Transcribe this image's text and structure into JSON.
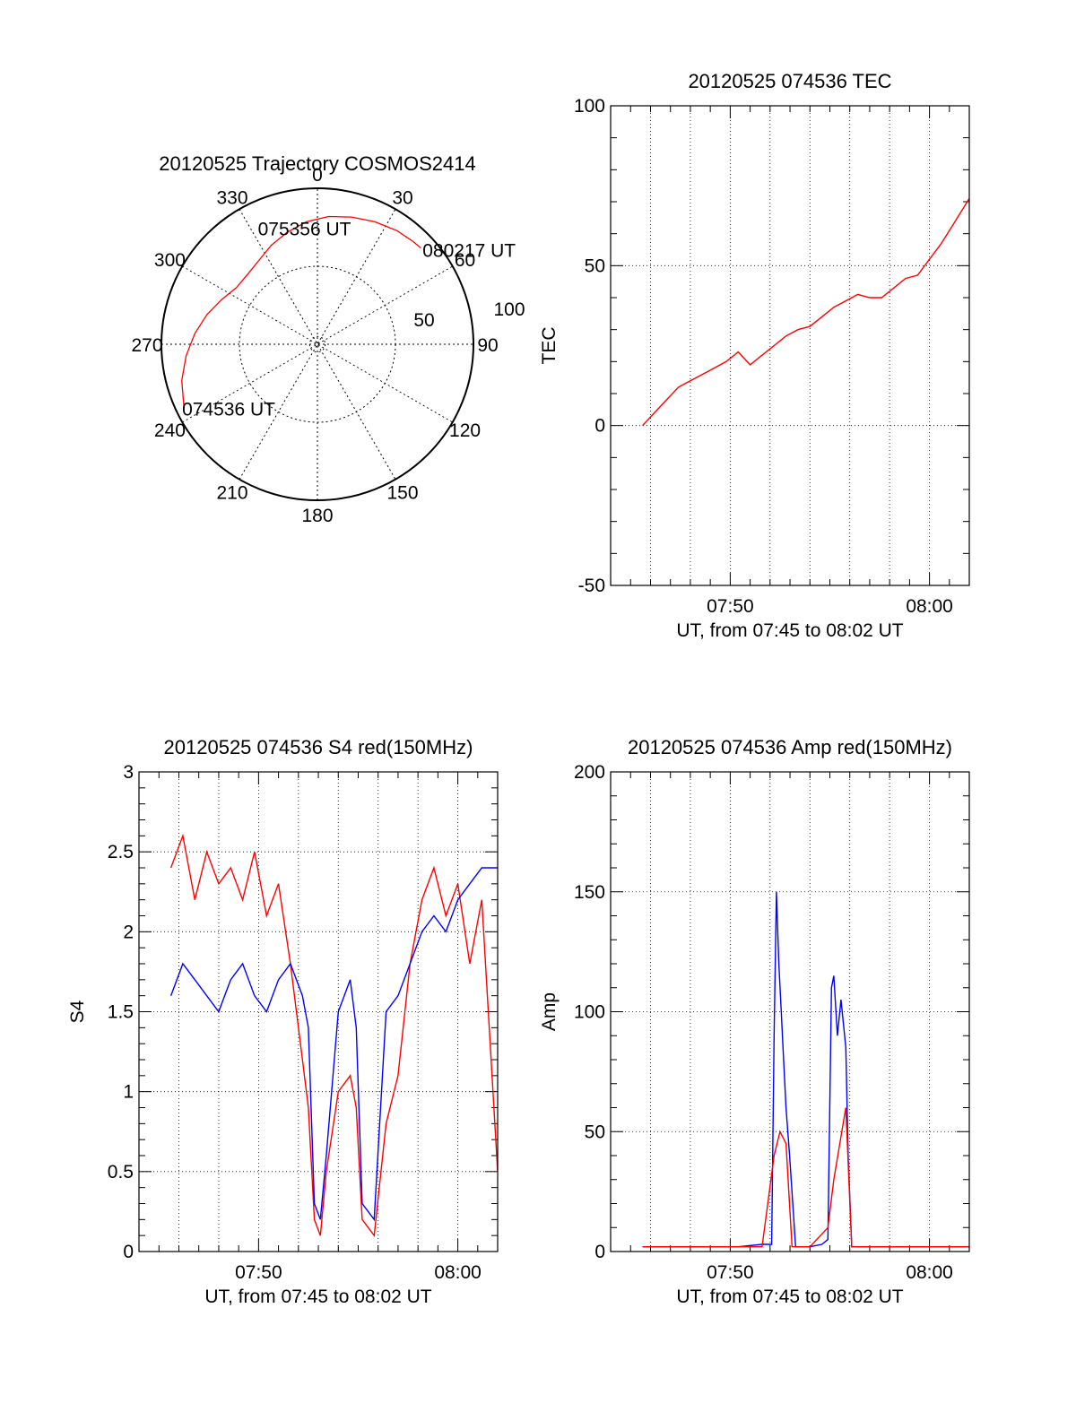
{
  "chart_data": [
    {
      "type": "polar",
      "title": "20120525 Trajectory COSMOS2414",
      "azimuth_labels": [
        "0",
        "30",
        "60",
        "90",
        "120",
        "150",
        "180",
        "210",
        "240",
        "270",
        "300",
        "330"
      ],
      "radial_labels": [
        "50",
        "100"
      ],
      "series": [
        {
          "color": "#ff0000",
          "points": [
            {
              "az": 245,
              "el": 5
            },
            {
              "az": 255,
              "el": 9
            },
            {
              "az": 265,
              "el": 14
            },
            {
              "az": 275,
              "el": 19
            },
            {
              "az": 285,
              "el": 24
            },
            {
              "az": 295,
              "el": 29
            },
            {
              "az": 305,
              "el": 33
            },
            {
              "az": 315,
              "el": 33
            },
            {
              "az": 325,
              "el": 31
            },
            {
              "az": 335,
              "el": 27
            },
            {
              "az": 345,
              "el": 23
            },
            {
              "az": 355,
              "el": 19
            },
            {
              "az": 5,
              "el": 16
            },
            {
              "az": 15,
              "el": 14
            },
            {
              "az": 25,
              "el": 12
            },
            {
              "az": 35,
              "el": 10
            },
            {
              "az": 43,
              "el": 9
            },
            {
              "az": 47,
              "el": 8.5
            }
          ]
        }
      ],
      "annotations": [
        {
          "text": "074536 UT",
          "az": 245,
          "el": 5
        },
        {
          "text": "075356 UT",
          "az": 350,
          "el": 62
        },
        {
          "text": "080217 UT",
          "az": 47,
          "el": 8.5
        }
      ]
    },
    {
      "type": "line",
      "title": "20120525 074536 TEC",
      "xlabel": "UT, from 07:45 to 08:02 UT",
      "ylabel": "TEC",
      "xlim": [
        7.7333,
        8.0333
      ],
      "ylim": [
        -50,
        100
      ],
      "yticks": [
        "100",
        "50",
        "0",
        "-50"
      ],
      "xticks": [
        "07:50",
        "08:00"
      ],
      "grid": true,
      "series": [
        {
          "color": "#ff0000",
          "x": [
            7.76,
            7.77,
            7.78,
            7.79,
            7.8,
            7.81,
            7.82,
            7.83,
            7.84,
            7.85,
            7.86,
            7.87,
            7.88,
            7.89,
            7.9,
            7.91,
            7.92,
            7.93,
            7.94,
            7.95,
            7.96,
            7.97,
            7.98,
            7.99,
            8.0,
            8.01,
            8.02,
            8.0333
          ],
          "y": [
            0,
            4,
            8,
            12,
            14,
            16,
            18,
            20,
            23,
            19,
            22,
            25,
            28,
            30,
            31,
            34,
            37,
            39,
            41,
            40,
            40,
            43,
            46,
            47,
            52,
            57,
            63,
            71
          ]
        }
      ]
    },
    {
      "type": "line",
      "title": "20120525 074536 S4 red(150MHz)",
      "xlabel": "UT, from 07:45 to 08:02 UT",
      "ylabel": "S4",
      "xlim": [
        7.7333,
        8.0333
      ],
      "ylim": [
        0,
        3
      ],
      "yticks": [
        "3",
        "2.5",
        "2",
        "1.5",
        "1",
        "0.5",
        "0"
      ],
      "xticks": [
        "07:50",
        "08:00"
      ],
      "grid": true,
      "series": [
        {
          "color": "#ff0000",
          "x": [
            7.76,
            7.77,
            7.78,
            7.79,
            7.8,
            7.81,
            7.82,
            7.83,
            7.84,
            7.85,
            7.86,
            7.87,
            7.875,
            7.88,
            7.885,
            7.89,
            7.9,
            7.91,
            7.915,
            7.92,
            7.93,
            7.94,
            7.95,
            7.96,
            7.97,
            7.98,
            7.99,
            8.0,
            8.01,
            8.02,
            8.0333
          ],
          "y": [
            2.4,
            2.6,
            2.2,
            2.5,
            2.3,
            2.4,
            2.2,
            2.5,
            2.1,
            2.3,
            1.8,
            1.2,
            0.9,
            0.2,
            0.1,
            0.5,
            1.0,
            1.1,
            0.9,
            0.2,
            0.1,
            0.8,
            1.1,
            1.8,
            2.2,
            2.4,
            2.1,
            2.3,
            1.8,
            2.2,
            0.5
          ]
        },
        {
          "color": "#0000ff",
          "x": [
            7.76,
            7.77,
            7.78,
            7.79,
            7.8,
            7.81,
            7.82,
            7.83,
            7.84,
            7.85,
            7.86,
            7.87,
            7.875,
            7.88,
            7.885,
            7.89,
            7.9,
            7.91,
            7.915,
            7.92,
            7.93,
            7.94,
            7.95,
            7.96,
            7.97,
            7.98,
            7.99,
            8.0,
            8.01,
            8.02,
            8.0333
          ],
          "y": [
            1.6,
            1.8,
            1.7,
            1.6,
            1.5,
            1.7,
            1.8,
            1.6,
            1.5,
            1.7,
            1.8,
            1.6,
            1.4,
            0.3,
            0.2,
            0.6,
            1.5,
            1.7,
            1.4,
            0.3,
            0.2,
            1.5,
            1.6,
            1.8,
            2.0,
            2.1,
            2.0,
            2.2,
            2.3,
            2.4,
            2.4
          ]
        }
      ]
    },
    {
      "type": "line",
      "title": "20120525 074536 Amp red(150MHz)",
      "xlabel": "UT, from 07:45 to 08:02 UT",
      "ylabel": "Amp",
      "xlim": [
        7.7333,
        8.0333
      ],
      "ylim": [
        0,
        200
      ],
      "yticks": [
        "200",
        "150",
        "100",
        "50",
        "0"
      ],
      "xticks": [
        "07:50",
        "08:00"
      ],
      "grid": true,
      "series": [
        {
          "color": "#0000ff",
          "x": [
            7.76,
            7.8,
            7.84,
            7.86,
            7.868,
            7.87,
            7.872,
            7.874,
            7.876,
            7.878,
            7.88,
            7.883,
            7.888,
            7.9,
            7.91,
            7.915,
            7.918,
            7.92,
            7.923,
            7.926,
            7.93,
            7.932,
            7.935,
            7.94,
            8.0,
            8.0333
          ],
          "y": [
            2,
            2,
            2,
            3,
            3,
            90,
            150,
            120,
            100,
            80,
            60,
            40,
            2,
            2,
            3,
            5,
            110,
            115,
            90,
            105,
            85,
            40,
            2,
            2,
            2,
            2
          ]
        },
        {
          "color": "#ff0000",
          "x": [
            7.76,
            7.86,
            7.87,
            7.875,
            7.88,
            7.885,
            7.9,
            7.915,
            7.92,
            7.925,
            7.93,
            7.935,
            8.0333
          ],
          "y": [
            2,
            2,
            40,
            50,
            45,
            2,
            2,
            10,
            30,
            45,
            60,
            2,
            2
          ]
        }
      ]
    }
  ]
}
